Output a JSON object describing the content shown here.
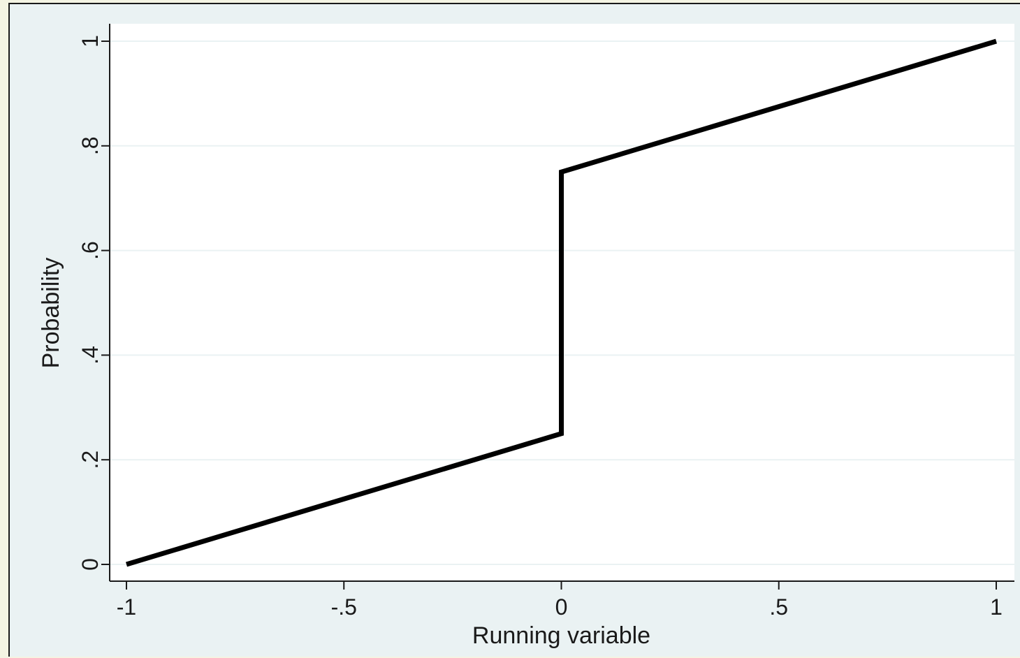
{
  "chart_data": {
    "type": "line",
    "xlabel": "Running variable",
    "ylabel": "Probability",
    "xlim": [
      -1.04,
      1.04
    ],
    "ylim": [
      -0.031,
      1.033
    ],
    "xticks": [
      {
        "value": -1,
        "label": "-1"
      },
      {
        "value": -0.5,
        "label": "-.5"
      },
      {
        "value": 0,
        "label": "0"
      },
      {
        "value": 0.5,
        "label": ".5"
      },
      {
        "value": 1,
        "label": "1"
      }
    ],
    "yticks": [
      {
        "value": 0,
        "label": "0"
      },
      {
        "value": 0.2,
        "label": ".2"
      },
      {
        "value": 0.4,
        "label": ".4"
      },
      {
        "value": 0.6,
        "label": ".6"
      },
      {
        "value": 0.8,
        "label": ".8"
      },
      {
        "value": 1,
        "label": "1"
      }
    ],
    "grid": "horizontal",
    "series": [
      {
        "x": [
          -1,
          0,
          0,
          1
        ],
        "y": [
          0,
          0.25,
          0.75,
          1
        ],
        "color": "#000000"
      }
    ],
    "colors": {
      "outer_background": "#f4f4e3",
      "chart_background": "#eaf2f3",
      "plot_background": "#ffffff",
      "gridline": "#eaf2f3",
      "axis": "#1a1a1a"
    }
  }
}
